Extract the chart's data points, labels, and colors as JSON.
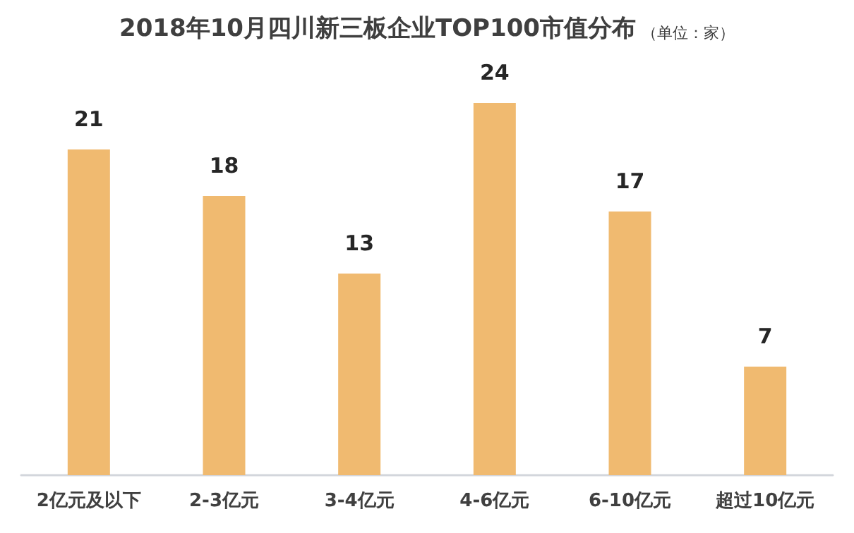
{
  "chart_data": {
    "type": "bar",
    "title": "2018年10月四川新三板企业TOP100市值分布",
    "subtitle": "（单位：家）",
    "categories": [
      "2亿元及以下",
      "2-3亿元",
      "3-4亿元",
      "4-6亿元",
      "6-10亿元",
      "超过10亿元"
    ],
    "values": [
      21,
      18,
      13,
      24,
      17,
      7
    ],
    "color": "#f0ba70",
    "data_labels": true,
    "tick_labels": "x"
  }
}
